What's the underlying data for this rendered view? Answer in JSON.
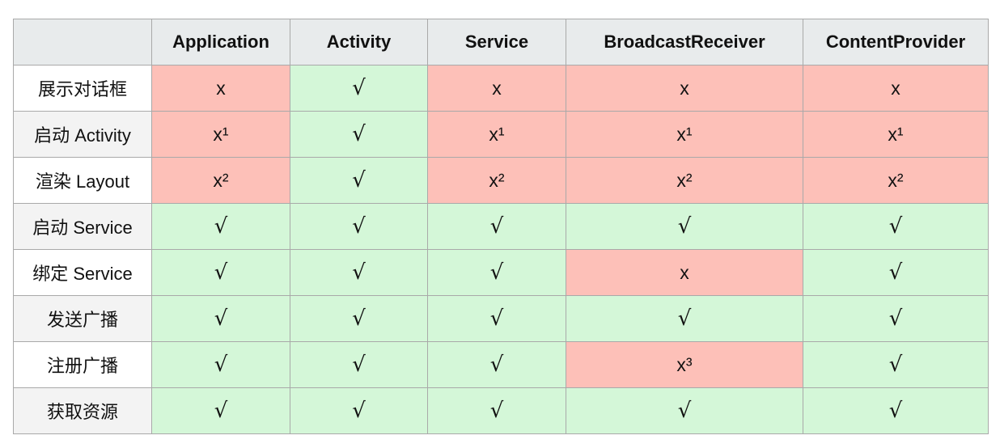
{
  "table": {
    "columns": [
      "",
      "Application",
      "Activity",
      "Service",
      "BroadcastReceiver",
      "ContentProvider"
    ],
    "rows": [
      {
        "label": "展示对话框",
        "cells": [
          {
            "text": "x",
            "ok": false
          },
          {
            "text": "√",
            "ok": true
          },
          {
            "text": "x",
            "ok": false
          },
          {
            "text": "x",
            "ok": false
          },
          {
            "text": "x",
            "ok": false
          }
        ]
      },
      {
        "label": "启动 Activity",
        "cells": [
          {
            "text": "x¹",
            "ok": false
          },
          {
            "text": "√",
            "ok": true
          },
          {
            "text": "x¹",
            "ok": false
          },
          {
            "text": "x¹",
            "ok": false
          },
          {
            "text": "x¹",
            "ok": false
          }
        ]
      },
      {
        "label": "渲染 Layout",
        "cells": [
          {
            "text": "x²",
            "ok": false
          },
          {
            "text": "√",
            "ok": true
          },
          {
            "text": "x²",
            "ok": false
          },
          {
            "text": "x²",
            "ok": false
          },
          {
            "text": "x²",
            "ok": false
          }
        ]
      },
      {
        "label": "启动 Service",
        "cells": [
          {
            "text": "√",
            "ok": true
          },
          {
            "text": "√",
            "ok": true
          },
          {
            "text": "√",
            "ok": true
          },
          {
            "text": "√",
            "ok": true
          },
          {
            "text": "√",
            "ok": true
          }
        ]
      },
      {
        "label": "绑定 Service",
        "cells": [
          {
            "text": "√",
            "ok": true
          },
          {
            "text": "√",
            "ok": true
          },
          {
            "text": "√",
            "ok": true
          },
          {
            "text": "x",
            "ok": false
          },
          {
            "text": "√",
            "ok": true
          }
        ]
      },
      {
        "label": "发送广播",
        "cells": [
          {
            "text": "√",
            "ok": true
          },
          {
            "text": "√",
            "ok": true
          },
          {
            "text": "√",
            "ok": true
          },
          {
            "text": "√",
            "ok": true
          },
          {
            "text": "√",
            "ok": true
          }
        ]
      },
      {
        "label": "注册广播",
        "cells": [
          {
            "text": "√",
            "ok": true
          },
          {
            "text": "√",
            "ok": true
          },
          {
            "text": "√",
            "ok": true
          },
          {
            "text": "x³",
            "ok": false
          },
          {
            "text": "√",
            "ok": true
          }
        ]
      },
      {
        "label": "获取资源",
        "cells": [
          {
            "text": "√",
            "ok": true
          },
          {
            "text": "√",
            "ok": true
          },
          {
            "text": "√",
            "ok": true
          },
          {
            "text": "√",
            "ok": true
          },
          {
            "text": "√",
            "ok": true
          }
        ]
      }
    ],
    "colors": {
      "yes": "#d4f7d8",
      "no": "#fdc0b8",
      "header": "#e8ebec",
      "border": "#a9a9a9"
    }
  }
}
